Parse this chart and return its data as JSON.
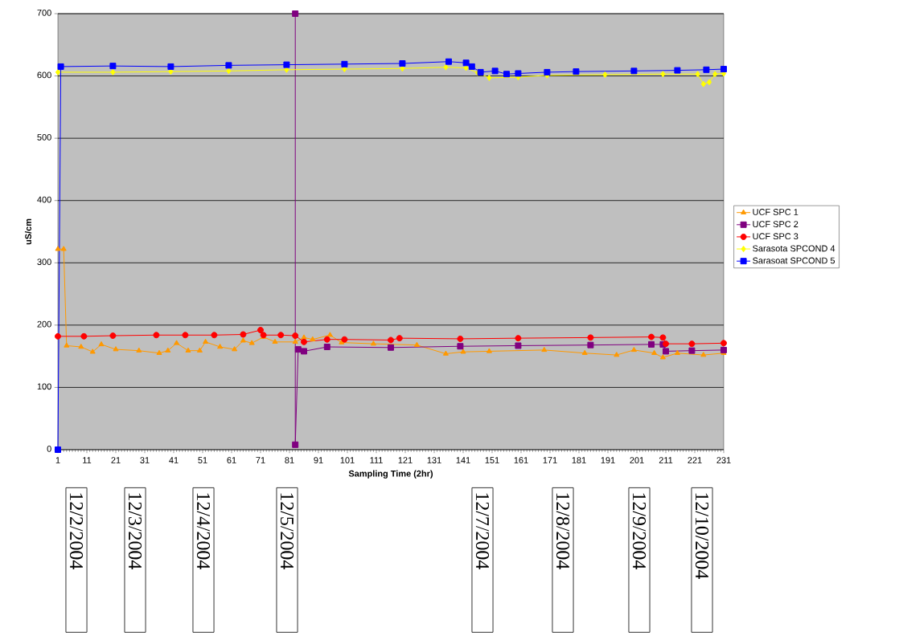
{
  "chart_data": {
    "type": "line",
    "xlabel": "Sampling Time (2hr)",
    "ylabel": "uS/cm",
    "xlim": [
      1,
      231
    ],
    "ylim": [
      0,
      700
    ],
    "xticks": [
      1,
      11,
      21,
      31,
      41,
      51,
      61,
      71,
      81,
      91,
      101,
      111,
      121,
      131,
      141,
      151,
      161,
      171,
      181,
      191,
      201,
      211,
      221,
      231
    ],
    "yticks": [
      0,
      100,
      200,
      300,
      400,
      500,
      600,
      700
    ],
    "grid": "y",
    "legend": "right",
    "series": [
      {
        "name": "UCF SPC 1",
        "color": "#ff9900",
        "marker": "triangle",
        "x": [
          1,
          3,
          4,
          9,
          13,
          16,
          21,
          29,
          36,
          39,
          42,
          46,
          50,
          52,
          57,
          62,
          65,
          68,
          72,
          76,
          83,
          86,
          89,
          95,
          99,
          110,
          125,
          135,
          141,
          150,
          169,
          183,
          194,
          200,
          207,
          210,
          215,
          224,
          231
        ],
        "values": [
          322,
          322,
          167,
          165,
          157,
          169,
          161,
          159,
          155,
          159,
          171,
          159,
          159,
          173,
          165,
          161,
          175,
          171,
          181,
          173,
          173,
          180,
          177,
          184,
          172,
          170,
          168,
          154,
          157,
          158,
          160,
          155,
          152,
          160,
          155,
          148,
          155,
          152,
          155
        ]
      },
      {
        "name": "UCF SPC 2",
        "color": "#800080",
        "marker": "square",
        "x": [
          83,
          83,
          84,
          86,
          94,
          116,
          140,
          160,
          185,
          206,
          210,
          211,
          220,
          231
        ],
        "values": [
          700,
          8,
          161,
          158,
          165,
          164,
          166,
          167,
          168,
          169,
          169,
          158,
          159,
          160
        ]
      },
      {
        "name": "UCF SPC 3",
        "color": "#ff0000",
        "marker": "circle",
        "x": [
          1,
          10,
          20,
          35,
          45,
          55,
          65,
          71,
          72,
          78,
          83,
          86,
          94,
          100,
          116,
          119,
          140,
          160,
          185,
          206,
          210,
          211,
          220,
          231
        ],
        "values": [
          182,
          182,
          183,
          184,
          184,
          184,
          185,
          192,
          184,
          184,
          183,
          173,
          177,
          177,
          176,
          179,
          178,
          179,
          180,
          181,
          180,
          170,
          170,
          171
        ]
      },
      {
        "name": "Sarasota SPCOND 4",
        "color": "#ffff00",
        "marker": "diamond",
        "x": [
          1,
          20,
          40,
          60,
          80,
          100,
          120,
          135,
          142,
          146,
          150,
          160,
          170,
          190,
          210,
          222,
          224,
          226,
          228,
          231
        ],
        "values": [
          606,
          606,
          607,
          608,
          610,
          611,
          612,
          614,
          613,
          605,
          597,
          598,
          601,
          602,
          603,
          603,
          587,
          590,
          603,
          604
        ]
      },
      {
        "name": "Sarasoat SPCOND 5",
        "color": "#0000ff",
        "marker": "square",
        "x": [
          1,
          2,
          20,
          40,
          60,
          80,
          100,
          120,
          136,
          142,
          144,
          147,
          152,
          156,
          160,
          170,
          180,
          200,
          215,
          225,
          231
        ],
        "values": [
          0,
          615,
          616,
          615,
          617,
          618,
          619,
          620,
          623,
          621,
          615,
          606,
          608,
          603,
          604,
          606,
          607,
          608,
          609,
          610,
          611
        ]
      }
    ],
    "annotations": [
      "12/2/2004",
      "12/3/2004",
      "12/4/2004",
      "12/5/2004",
      "12/7/2004",
      "12/8/2004",
      "12/9/2004",
      "12/10/2004"
    ]
  }
}
